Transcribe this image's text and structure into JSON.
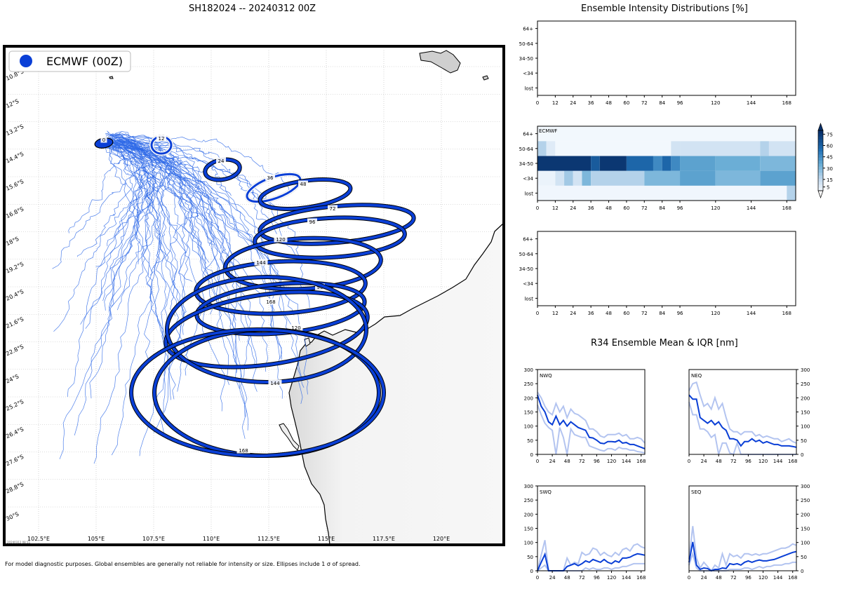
{
  "header": {
    "main_title": "SH182024 -- 20240312 00Z",
    "intensity_title": "Ensemble Intensity Distributions [%]",
    "r34_title": "R34 Ensemble Mean & IQR [nm]",
    "footnote": "For model diagnostic purposes. Global ensembles are generally not reliable for intensity or size. Ellipses include 1 σ of spread.",
    "timestamp": "20240312 08:11"
  },
  "map": {
    "legend_label": "ECMWF (00Z)",
    "lon_labels": [
      "102.5°E",
      "105°E",
      "107.5°E",
      "110°E",
      "112.5°E",
      "115°E",
      "117.5°E",
      "120°E"
    ],
    "lat_labels": [
      "10.8°S",
      "12°S",
      "13.2°S",
      "14.4°S",
      "15.6°S",
      "16.8°S",
      "18°S",
      "19.2°S",
      "20.4°S",
      "21.6°S",
      "22.8°S",
      "24°S",
      "25.2°S",
      "26.4°S",
      "27.6°S",
      "28.8°S",
      "30°S"
    ],
    "colors": {
      "track": "#2f6ae8",
      "ellipse": "#0a3fd6",
      "land": "#cfcfcf"
    },
    "ellipses": [
      {
        "tau": "0",
        "cx": 148,
        "cy": 204,
        "rx": 13,
        "ry": 7,
        "rot": -10,
        "lx": 148,
        "ly": 199
      },
      {
        "tau": "12",
        "cx": 230,
        "cy": 207,
        "rx": 14,
        "ry": 12,
        "rot": 0,
        "lx": 230,
        "ly": 197
      },
      {
        "tau": "24",
        "cx": 317,
        "cy": 242,
        "rx": 25,
        "ry": 14,
        "rot": -10,
        "lx": 315,
        "ly": 229
      },
      {
        "tau": "36",
        "cx": 390,
        "cy": 268,
        "rx": 40,
        "ry": 15,
        "rot": -20,
        "lx": 385,
        "ly": 253
      },
      {
        "tau": "48",
        "cx": 435,
        "cy": 277,
        "rx": 65,
        "ry": 19,
        "rot": -8,
        "lx": 432,
        "ly": 262
      },
      {
        "tau": "72",
        "cx": 480,
        "cy": 320,
        "rx": 110,
        "ry": 26,
        "rot": -5,
        "lx": 474,
        "ly": 297
      },
      {
        "tau": "96",
        "cx": 470,
        "cy": 339,
        "rx": 107,
        "ry": 28,
        "rot": -3,
        "lx": 445,
        "ly": 316
      },
      {
        "tau": "120",
        "cx": 432,
        "cy": 376,
        "rx": 111,
        "ry": 36,
        "rot": -3,
        "lx": 400,
        "ly": 341
      },
      {
        "tau": "144",
        "cx": 400,
        "cy": 410,
        "rx": 121,
        "ry": 37,
        "rot": -3,
        "lx": 372,
        "ly": 374
      },
      {
        "tau": "96",
        "cx": 400,
        "cy": 440,
        "rx": 120,
        "ry": 35,
        "rot": -5,
        "lx": 456,
        "ly": 409
      },
      {
        "tau": "168",
        "cx": 380,
        "cy": 470,
        "rx": 145,
        "ry": 50,
        "rot": -8,
        "lx": 386,
        "ly": 430
      },
      {
        "tau": "120",
        "cx": 380,
        "cy": 470,
        "rx": 142,
        "ry": 75,
        "rot": 0,
        "lx": 422,
        "ly": 467
      },
      {
        "tau": "144",
        "cx": 380,
        "cy": 560,
        "rx": 160,
        "ry": 90,
        "rot": 0,
        "lx": 392,
        "ly": 546
      },
      {
        "tau": "168",
        "cx": 367,
        "cy": 560,
        "rx": 180,
        "ry": 90,
        "rot": 0,
        "lx": 347,
        "ly": 642
      }
    ]
  },
  "chart_data": [
    {
      "type": "heatmap",
      "title": "Ensemble Intensity Distributions [%]",
      "panel": "top",
      "x_ticks": [
        0,
        12,
        24,
        36,
        48,
        60,
        72,
        84,
        96,
        120,
        144,
        168
      ],
      "y_categories": [
        "lost",
        "<34",
        "34-50",
        "50-64",
        "64+"
      ],
      "cells": []
    },
    {
      "type": "heatmap",
      "panel": "middle",
      "series_label": "ECMWF",
      "x_ticks": [
        0,
        12,
        24,
        36,
        48,
        60,
        72,
        84,
        96,
        120,
        144,
        168
      ],
      "y_categories": [
        "lost",
        "<34",
        "34-50",
        "50-64",
        "64+"
      ],
      "colorbar": {
        "ticks": [
          5,
          15,
          30,
          45,
          60,
          75
        ]
      },
      "rows": {
        "64+": [
          [
            0,
            174,
            2
          ]
        ],
        "50-64": [
          [
            0,
            6,
            25
          ],
          [
            6,
            12,
            10
          ],
          [
            12,
            90,
            2
          ],
          [
            90,
            96,
            15
          ],
          [
            96,
            150,
            15
          ],
          [
            150,
            156,
            25
          ],
          [
            156,
            174,
            15
          ]
        ],
        "34-50": [
          [
            0,
            36,
            97
          ],
          [
            36,
            42,
            80
          ],
          [
            42,
            60,
            97
          ],
          [
            60,
            78,
            75
          ],
          [
            78,
            84,
            60
          ],
          [
            84,
            90,
            75
          ],
          [
            90,
            96,
            60
          ],
          [
            96,
            120,
            50
          ],
          [
            120,
            150,
            45
          ],
          [
            150,
            174,
            40
          ]
        ],
        "<34": [
          [
            0,
            12,
            5
          ],
          [
            12,
            18,
            15
          ],
          [
            18,
            24,
            30
          ],
          [
            24,
            30,
            15
          ],
          [
            30,
            36,
            40
          ],
          [
            36,
            72,
            25
          ],
          [
            72,
            96,
            40
          ],
          [
            96,
            120,
            50
          ],
          [
            120,
            150,
            40
          ],
          [
            150,
            174,
            50
          ]
        ],
        "lost": [
          [
            0,
            168,
            3
          ],
          [
            168,
            174,
            25
          ]
        ]
      }
    },
    {
      "type": "heatmap",
      "panel": "bottom",
      "x_ticks": [
        0,
        12,
        24,
        36,
        48,
        60,
        72,
        84,
        96,
        120,
        144,
        168
      ],
      "y_categories": [
        "lost",
        "<34",
        "34-50",
        "50-64",
        "64+"
      ],
      "cells": []
    },
    {
      "type": "line",
      "title": "R34 Ensemble Mean & IQR [nm]",
      "panels": [
        {
          "name": "NWQ",
          "x": [
            0,
            6,
            12,
            18,
            24,
            30,
            36,
            42,
            48,
            54,
            60,
            66,
            72,
            78,
            84,
            90,
            96,
            102,
            108,
            114,
            120,
            126,
            132,
            138,
            144,
            150,
            156,
            162,
            168,
            174
          ],
          "mean": [
            210,
            170,
            150,
            115,
            105,
            135,
            105,
            120,
            100,
            115,
            105,
            95,
            90,
            85,
            60,
            58,
            50,
            40,
            38,
            45,
            45,
            44,
            50,
            40,
            42,
            35,
            35,
            30,
            25,
            20
          ],
          "q75": [
            220,
            200,
            170,
            150,
            140,
            180,
            150,
            170,
            130,
            160,
            145,
            140,
            130,
            120,
            90,
            90,
            80,
            65,
            60,
            70,
            70,
            70,
            75,
            65,
            70,
            55,
            55,
            60,
            55,
            40
          ],
          "q25": [
            175,
            140,
            110,
            95,
            85,
            0,
            95,
            60,
            0,
            90,
            70,
            65,
            60,
            60,
            30,
            25,
            20,
            15,
            12,
            20,
            20,
            15,
            25,
            20,
            20,
            15,
            15,
            10,
            8,
            5
          ]
        },
        {
          "name": "NEQ",
          "x": [
            0,
            6,
            12,
            18,
            24,
            30,
            36,
            42,
            48,
            54,
            60,
            66,
            72,
            78,
            84,
            90,
            96,
            102,
            108,
            114,
            120,
            126,
            132,
            138,
            144,
            150,
            156,
            162,
            168,
            174
          ],
          "mean": [
            210,
            195,
            195,
            130,
            120,
            110,
            120,
            105,
            115,
            95,
            85,
            55,
            55,
            50,
            30,
            45,
            45,
            55,
            45,
            50,
            40,
            45,
            40,
            35,
            35,
            30,
            30,
            30,
            28,
            25
          ],
          "q75": [
            225,
            250,
            255,
            210,
            170,
            180,
            160,
            200,
            160,
            180,
            130,
            90,
            80,
            80,
            70,
            80,
            80,
            80,
            65,
            70,
            60,
            65,
            60,
            55,
            55,
            45,
            50,
            55,
            45,
            40
          ],
          "q25": [
            185,
            140,
            140,
            90,
            90,
            80,
            60,
            70,
            0,
            40,
            40,
            5,
            0,
            40,
            0,
            0,
            0,
            0,
            0,
            0,
            0,
            0,
            0,
            0,
            0,
            0,
            0,
            0,
            0,
            0
          ]
        },
        {
          "name": "SWQ",
          "x": [
            0,
            6,
            12,
            18,
            24,
            30,
            36,
            42,
            48,
            54,
            60,
            66,
            72,
            78,
            84,
            90,
            96,
            102,
            108,
            114,
            120,
            126,
            132,
            138,
            144,
            150,
            156,
            162,
            168,
            174
          ],
          "mean": [
            0,
            30,
            58,
            0,
            0,
            0,
            0,
            0,
            15,
            20,
            25,
            18,
            25,
            35,
            30,
            40,
            35,
            30,
            40,
            30,
            25,
            35,
            30,
            45,
            45,
            48,
            55,
            60,
            58,
            55
          ],
          "q75": [
            0,
            55,
            108,
            0,
            0,
            0,
            0,
            0,
            45,
            20,
            30,
            25,
            65,
            55,
            60,
            80,
            75,
            55,
            65,
            55,
            50,
            65,
            55,
            75,
            80,
            70,
            90,
            95,
            85,
            80
          ],
          "q25": [
            0,
            10,
            20,
            0,
            0,
            0,
            0,
            0,
            0,
            0,
            0,
            0,
            0,
            10,
            5,
            10,
            5,
            5,
            10,
            10,
            5,
            10,
            10,
            15,
            15,
            20,
            25,
            25,
            25,
            25
          ]
        },
        {
          "name": "SEQ",
          "x": [
            0,
            6,
            12,
            18,
            24,
            30,
            36,
            42,
            48,
            54,
            60,
            66,
            72,
            78,
            84,
            90,
            96,
            102,
            108,
            114,
            120,
            126,
            132,
            138,
            144,
            150,
            156,
            162,
            168,
            174
          ],
          "mean": [
            30,
            102,
            20,
            5,
            10,
            8,
            0,
            5,
            5,
            10,
            8,
            25,
            22,
            25,
            20,
            30,
            35,
            30,
            35,
            38,
            35,
            35,
            38,
            40,
            45,
            50,
            55,
            60,
            65,
            68
          ],
          "q75": [
            40,
            158,
            45,
            10,
            30,
            15,
            0,
            20,
            10,
            60,
            20,
            60,
            50,
            55,
            45,
            60,
            60,
            55,
            60,
            55,
            60,
            60,
            65,
            70,
            75,
            80,
            80,
            85,
            95,
            90
          ],
          "q25": [
            20,
            60,
            10,
            0,
            0,
            0,
            0,
            0,
            0,
            0,
            0,
            5,
            5,
            5,
            5,
            10,
            10,
            5,
            10,
            15,
            10,
            15,
            15,
            20,
            20,
            20,
            25,
            25,
            30,
            30
          ]
        }
      ],
      "x_ticks": [
        0,
        24,
        48,
        72,
        96,
        120,
        144,
        168
      ],
      "y_ticks": [
        0,
        50,
        100,
        150,
        200,
        250,
        300
      ],
      "ylim": [
        0,
        300
      ],
      "xlim": [
        0,
        174
      ],
      "colors": {
        "mean": "#0a3fd6",
        "iqr": "#b3c4f0"
      }
    }
  ]
}
